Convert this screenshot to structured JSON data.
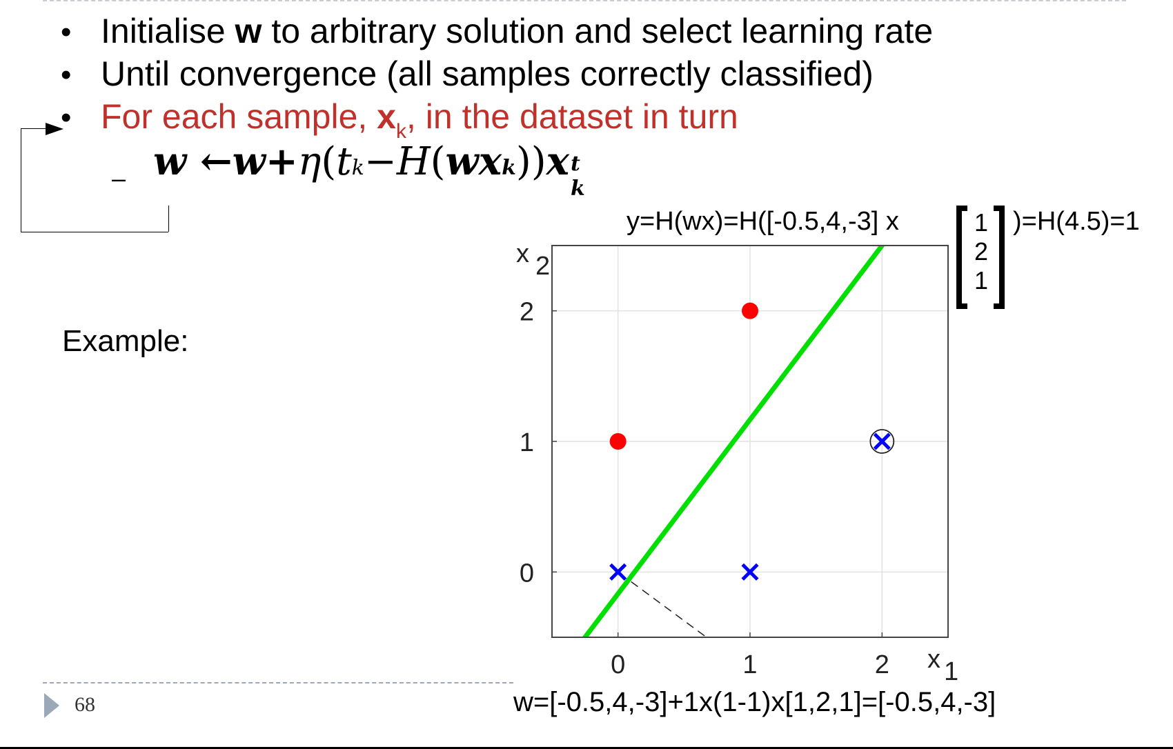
{
  "bullets": {
    "b1_pre": "Initialise ",
    "b1_bold": "w",
    "b1_post": " to arbitrary solution and select learning rate",
    "b2": "Until convergence (all samples correctly classified)",
    "b3_pre": "For each sample, ",
    "b3_bold": "x",
    "b3_sub": "k",
    "b3_post": ", in the dataset in turn",
    "bullet_glyph": "•"
  },
  "formula": {
    "dash": "–",
    "lhs": "w",
    "arrow": "←",
    "rhs_w": "w",
    "plus": "+",
    "eta": "η",
    "open": "(",
    "t": "t",
    "t_sub": "k",
    "minus": "−",
    "H": "H",
    "open2": "(",
    "wx": "wx",
    "wx_sub": "k",
    "close": "))",
    "x": "x",
    "x_sub": "k",
    "x_sup": "t"
  },
  "example_label": "Example:",
  "slide_number": "68",
  "top_equation": {
    "prefix": "y=H(wx)=H([-0.5,4,-3] x",
    "vector": [
      "1",
      "2",
      "1"
    ],
    "suffix": ")=H(4.5)=1"
  },
  "bottom_equation": "w=[-0.5,4,-3]+1x(1-1)x[1,2,1]=[-0.5,4,-3]",
  "colors": {
    "accent_red": "#c0312b",
    "class_red": "#ff0000",
    "class_blue": "#0000ff",
    "boundary": "#00e000"
  },
  "chart_data": {
    "type": "scatter",
    "xlabel": "x",
    "xlabel_sub": "1",
    "ylabel": "x",
    "ylabel_sub": "2",
    "xlim": [
      -0.5,
      2.5
    ],
    "ylim": [
      -0.5,
      2.5
    ],
    "xticks": [
      "0",
      "1",
      "2"
    ],
    "xtick_values": [
      0,
      1,
      2
    ],
    "yticks": [
      "0",
      "1",
      "2"
    ],
    "ytick_values": [
      0,
      1,
      2
    ],
    "grid": true,
    "series": [
      {
        "marker": "circle",
        "color": "#ff0000",
        "points": [
          [
            0,
            1
          ],
          [
            1,
            2
          ]
        ]
      },
      {
        "marker": "x",
        "color": "#0000ff",
        "points": [
          [
            0,
            0
          ],
          [
            1,
            0
          ],
          [
            2,
            1
          ]
        ]
      }
    ],
    "highlighted_point": [
      2,
      1
    ],
    "decision_boundary": {
      "w": [
        -0.5,
        4,
        -3
      ]
    },
    "normal_segment": [
      [
        0.1,
        -0.075
      ],
      [
        0.67,
        -0.5
      ]
    ]
  }
}
